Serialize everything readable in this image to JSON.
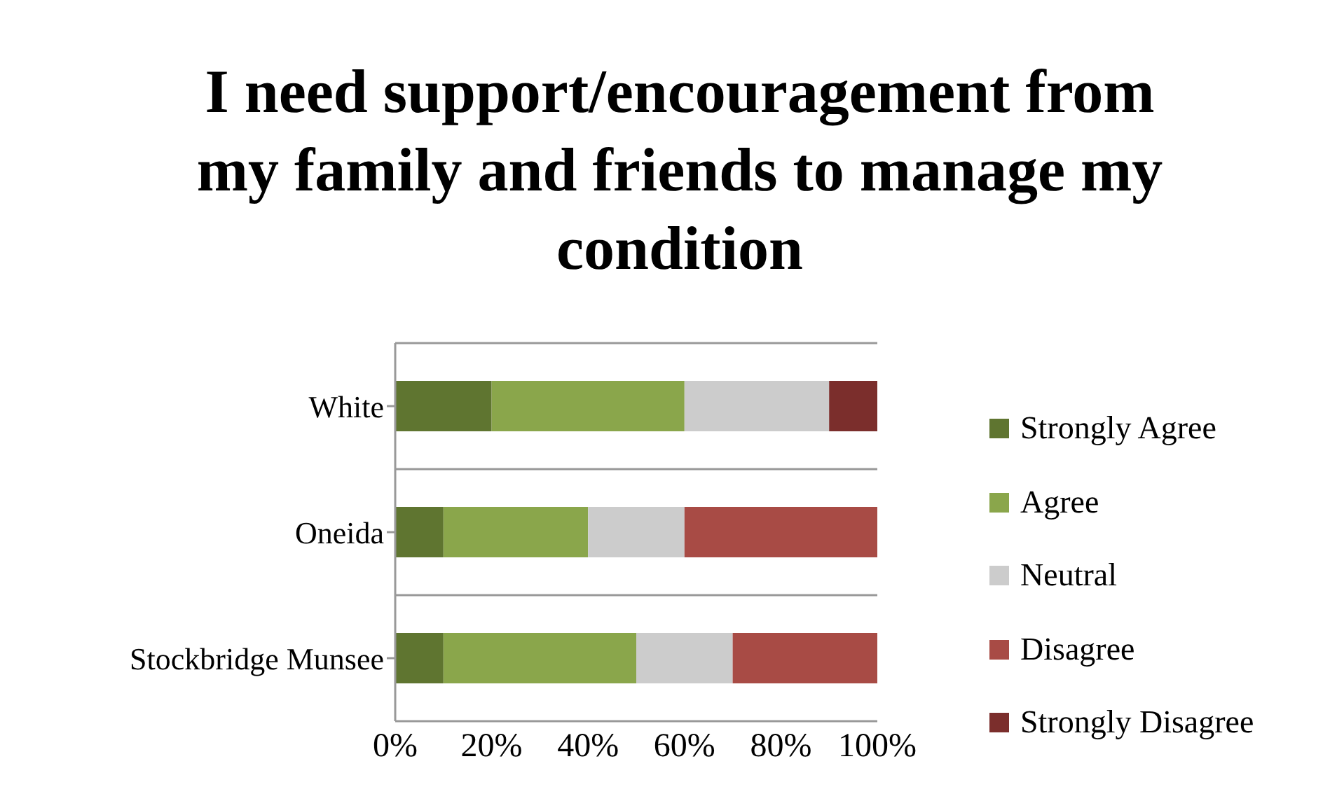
{
  "chart_data": {
    "type": "bar",
    "orientation": "horizontal",
    "stacked": true,
    "title": "I need support/encouragement from my family and friends to manage my condition",
    "categories": [
      "White",
      "Oneida",
      "Stockbridge Munsee"
    ],
    "series": [
      {
        "name": "Strongly Agree",
        "color": "#5f7530",
        "values": [
          20,
          10,
          10
        ]
      },
      {
        "name": "Agree",
        "color": "#8aa64b",
        "values": [
          40,
          30,
          40
        ]
      },
      {
        "name": "Neutral",
        "color": "#cccccc",
        "values": [
          30,
          20,
          20
        ]
      },
      {
        "name": "Disagree",
        "color": "#a84b45",
        "values": [
          0,
          40,
          30
        ]
      },
      {
        "name": "Strongly Disagree",
        "color": "#7b2e2c",
        "values": [
          10,
          0,
          0
        ]
      }
    ],
    "xlim": [
      0,
      100
    ],
    "xticks": [
      {
        "value": 0,
        "label": "0%"
      },
      {
        "value": 20,
        "label": "20%"
      },
      {
        "value": 40,
        "label": "40%"
      },
      {
        "value": 60,
        "label": "60%"
      },
      {
        "value": 80,
        "label": "80%"
      },
      {
        "value": 100,
        "label": "100%"
      }
    ],
    "grid": "y",
    "legend": "right"
  }
}
